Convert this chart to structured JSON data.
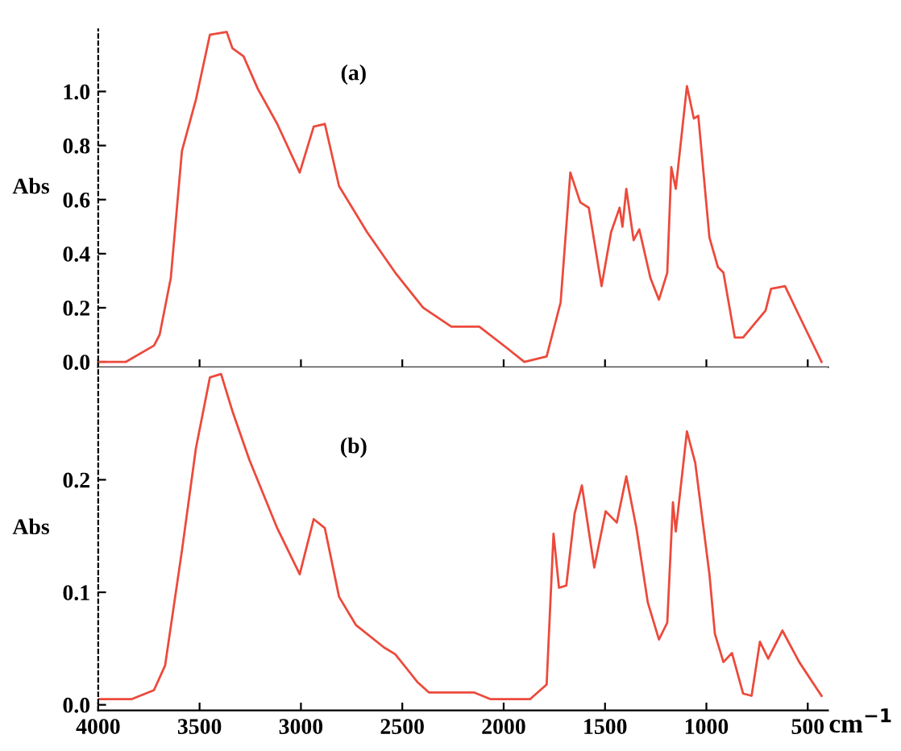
{
  "chart_data": [
    {
      "type": "line",
      "ylabel": "Abs",
      "annotations": [
        "(a)"
      ],
      "tick_labels": "y",
      "grid": false,
      "xlim": [
        4000,
        400
      ],
      "ylim": [
        -0.02,
        1.23
      ],
      "yticks": [
        {
          "value": 0,
          "label": "0.0"
        },
        {
          "value": 0.2,
          "label": "0.2"
        },
        {
          "value": 0.4,
          "label": "0.4"
        },
        {
          "value": 0.6,
          "label": "0.6"
        },
        {
          "value": 0.8,
          "label": "0.8"
        },
        {
          "value": 1,
          "label": "1.0"
        }
      ],
      "series": [
        {
          "color": "#ec4a3c",
          "x": [
            4000,
            3863,
            3725,
            3697,
            3642,
            3587,
            3518,
            3449,
            3366,
            3338,
            3283,
            3213,
            3117,
            3006,
            2937,
            2882,
            2812,
            2674,
            2535,
            2397,
            2258,
            2120,
            1982,
            1898,
            1788,
            1719,
            1671,
            1622,
            1580,
            1517,
            1470,
            1428,
            1414,
            1395,
            1359,
            1331,
            1276,
            1234,
            1193,
            1173,
            1151,
            1096,
            1062,
            1040,
            985,
            943,
            916,
            860,
            819,
            708,
            681,
            612,
            542,
            432
          ],
          "values": [
            0.0,
            0.0,
            0.06,
            0.1,
            0.31,
            0.78,
            0.97,
            1.21,
            1.22,
            1.16,
            1.13,
            1.01,
            0.88,
            0.7,
            0.87,
            0.88,
            0.65,
            0.48,
            0.33,
            0.2,
            0.13,
            0.13,
            0.05,
            0.0,
            0.02,
            0.22,
            0.7,
            0.59,
            0.57,
            0.28,
            0.48,
            0.57,
            0.5,
            0.64,
            0.45,
            0.49,
            0.31,
            0.23,
            0.33,
            0.72,
            0.64,
            1.02,
            0.9,
            0.91,
            0.46,
            0.35,
            0.33,
            0.09,
            0.09,
            0.19,
            0.27,
            0.28,
            0.17,
            0.0
          ]
        }
      ]
    },
    {
      "type": "line",
      "ylabel": "Abs",
      "xlabel": "cm$^{−1}$",
      "annotations": [
        "(b)"
      ],
      "grid": false,
      "xlim": [
        4000,
        400
      ],
      "ylim": [
        -0.005,
        0.3
      ],
      "xticks": [
        4000,
        3500,
        3000,
        2500,
        2000,
        1500,
        1000,
        500
      ],
      "yticks": [
        {
          "value": 0,
          "label": "0.0"
        },
        {
          "value": 0.1,
          "label": "0.1"
        },
        {
          "value": 0.2,
          "label": "0.2"
        }
      ],
      "series": [
        {
          "color": "#ec4a3c",
          "x": [
            4000,
            3836,
            3725,
            3670,
            3587,
            3518,
            3449,
            3394,
            3338,
            3255,
            3117,
            3006,
            2937,
            2882,
            2812,
            2729,
            2590,
            2535,
            2424,
            2369,
            2147,
            2064,
            1870,
            1788,
            1754,
            1727,
            1691,
            1650,
            1614,
            1553,
            1497,
            1442,
            1395,
            1345,
            1289,
            1234,
            1193,
            1165,
            1151,
            1096,
            1055,
            985,
            958,
            916,
            874,
            819,
            777,
            736,
            695,
            625,
            542,
            432
          ],
          "values": [
            0.005,
            0.005,
            0.013,
            0.035,
            0.137,
            0.228,
            0.291,
            0.294,
            0.261,
            0.218,
            0.157,
            0.116,
            0.165,
            0.157,
            0.096,
            0.071,
            0.051,
            0.045,
            0.02,
            0.011,
            0.011,
            0.005,
            0.005,
            0.018,
            0.152,
            0.104,
            0.106,
            0.17,
            0.195,
            0.122,
            0.172,
            0.162,
            0.203,
            0.157,
            0.091,
            0.058,
            0.073,
            0.18,
            0.154,
            0.243,
            0.215,
            0.116,
            0.063,
            0.038,
            0.046,
            0.01,
            0.008,
            0.056,
            0.041,
            0.066,
            0.038,
            0.008
          ]
        }
      ]
    }
  ]
}
